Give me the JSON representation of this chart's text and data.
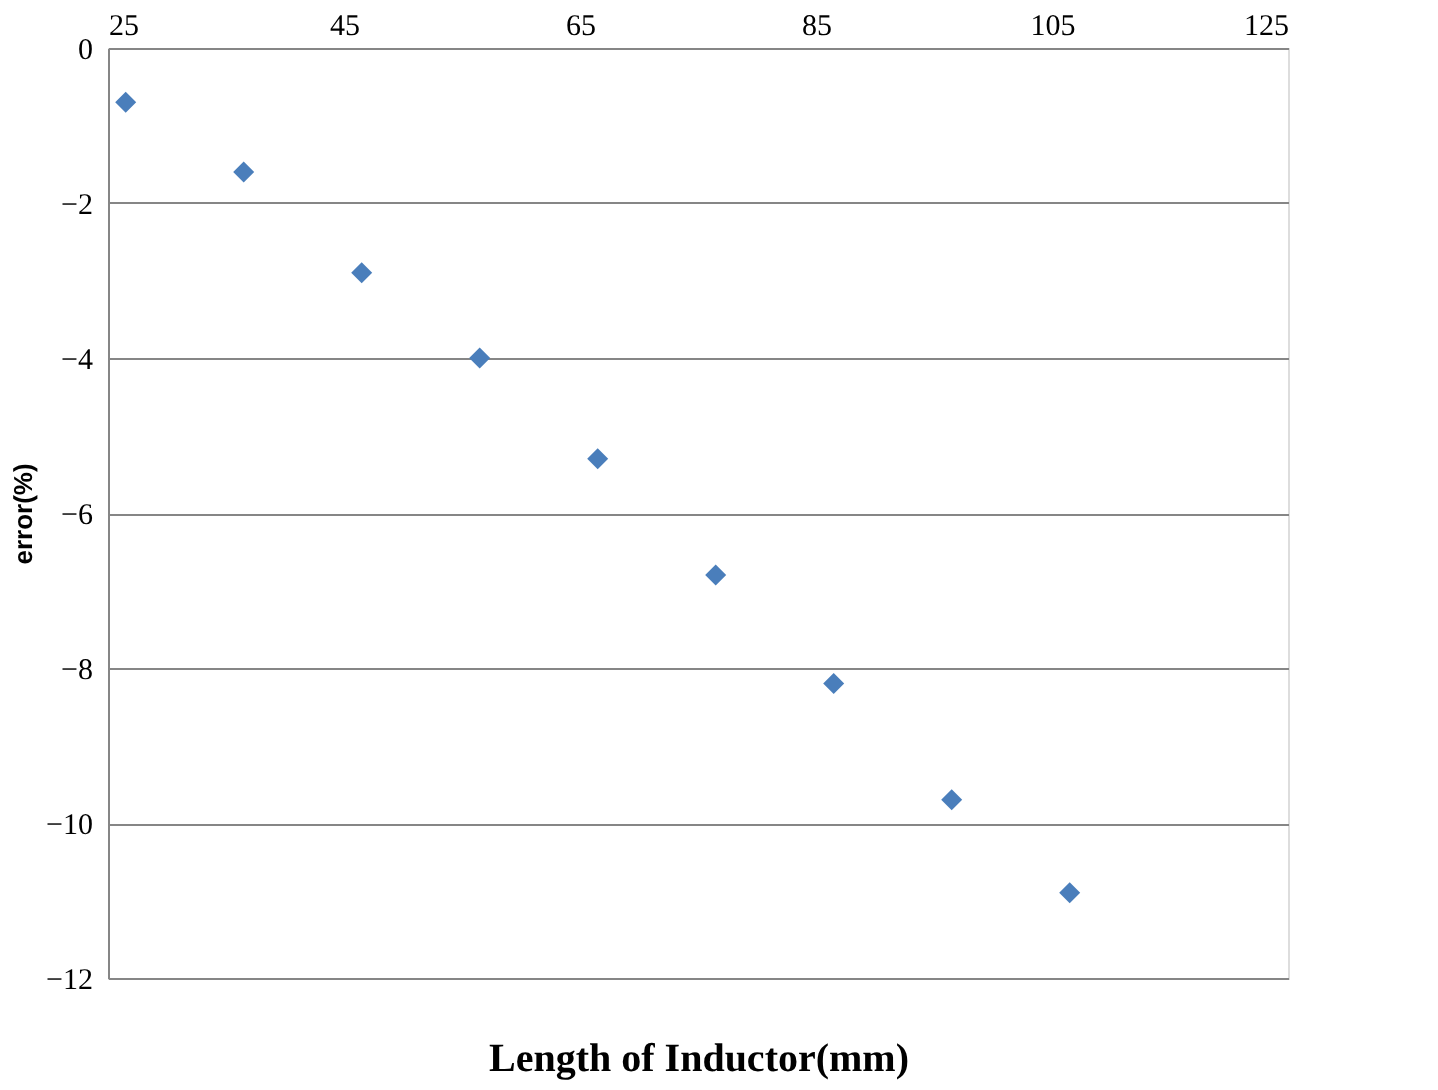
{
  "chart_data": {
    "type": "scatter",
    "xlabel": "Length of Inductor(mm)",
    "ylabel": "error(%)",
    "x": [
      26.5,
      36.5,
      46.5,
      56.5,
      66.5,
      76.5,
      86.5,
      96.5,
      106.5
    ],
    "series": [
      {
        "color": "#4a7ebb",
        "values": [
          -0.7,
          -1.6,
          -2.9,
          -4.0,
          -5.3,
          -6.8,
          -8.2,
          -9.7,
          -10.9
        ]
      }
    ],
    "xlim": [
      25,
      125
    ],
    "xticks": [
      25,
      45,
      65,
      85,
      105,
      125
    ],
    "ylim": [
      -12,
      0
    ],
    "yticks": [
      -12,
      -10,
      -8,
      -6,
      -4,
      -2,
      0
    ],
    "grid": "y",
    "marker": "diamond"
  }
}
